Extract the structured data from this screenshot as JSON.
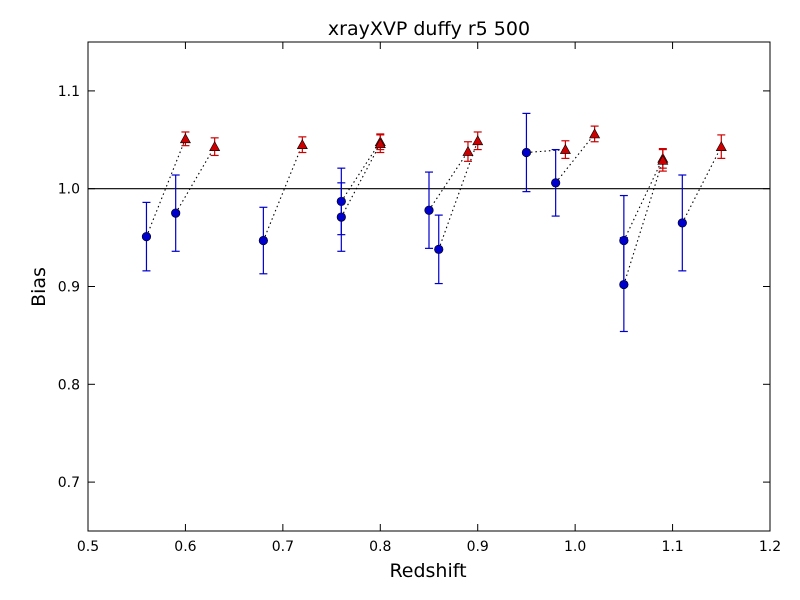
{
  "chart_data": {
    "type": "scatter",
    "title": "xrayXVP duffy r5 500",
    "xlabel": "Redshift",
    "ylabel": "Bias",
    "xlim": [
      0.5,
      1.2
    ],
    "ylim": [
      0.65,
      1.15
    ],
    "xticks": [
      "0.5",
      "0.6",
      "0.7",
      "0.8",
      "0.9",
      "1.0",
      "1.1",
      "1.2"
    ],
    "yticks": [
      "0.7",
      "0.8",
      "0.9",
      "1.0",
      "1.1"
    ],
    "reference_line": 1.0,
    "grid": false,
    "legend": "none",
    "series": [
      {
        "marker": "circle",
        "color": "#0000cc",
        "points": [
          {
            "x": 0.56,
            "y": 0.951,
            "err": 0.035
          },
          {
            "x": 0.59,
            "y": 0.975,
            "err": 0.039
          },
          {
            "x": 0.68,
            "y": 0.947,
            "err": 0.034
          },
          {
            "x": 0.76,
            "y": 0.987,
            "err": 0.034
          },
          {
            "x": 0.76,
            "y": 0.971,
            "err": 0.035
          },
          {
            "x": 0.85,
            "y": 0.978,
            "err": 0.039
          },
          {
            "x": 0.86,
            "y": 0.938,
            "err": 0.035
          },
          {
            "x": 0.95,
            "y": 1.037,
            "err": 0.04
          },
          {
            "x": 0.98,
            "y": 1.006,
            "err": 0.034
          },
          {
            "x": 1.05,
            "y": 0.947,
            "err": 0.046
          },
          {
            "x": 1.05,
            "y": 0.902,
            "err": 0.048
          },
          {
            "x": 1.11,
            "y": 0.965,
            "err": 0.049
          }
        ]
      },
      {
        "marker": "triangle",
        "color": "#cc0000",
        "points": [
          {
            "x": 0.6,
            "y": 1.051,
            "err": 0.007
          },
          {
            "x": 0.63,
            "y": 1.043,
            "err": 0.009
          },
          {
            "x": 0.72,
            "y": 1.045,
            "err": 0.008
          },
          {
            "x": 0.8,
            "y": 1.048,
            "err": 0.008
          },
          {
            "x": 0.8,
            "y": 1.046,
            "err": 0.009
          },
          {
            "x": 0.89,
            "y": 1.038,
            "err": 0.01
          },
          {
            "x": 0.9,
            "y": 1.049,
            "err": 0.009
          },
          {
            "x": 0.99,
            "y": 1.04,
            "err": 0.009
          },
          {
            "x": 1.02,
            "y": 1.056,
            "err": 0.008
          },
          {
            "x": 1.09,
            "y": 1.031,
            "err": 0.01
          },
          {
            "x": 1.09,
            "y": 1.029,
            "err": 0.011
          },
          {
            "x": 1.15,
            "y": 1.043,
            "err": 0.012
          }
        ]
      }
    ]
  }
}
